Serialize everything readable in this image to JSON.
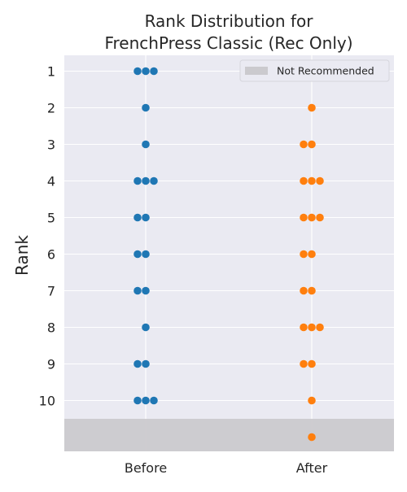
{
  "chart_data": {
    "type": "scatter",
    "subtype": "swarm",
    "title_lines": [
      "Rank Distribution for",
      "FrenchPress Classic (Rec Only)"
    ],
    "ylabel": "Rank",
    "xlabel": "",
    "categories": [
      "Before",
      "After"
    ],
    "y_ticks": [
      1,
      2,
      3,
      4,
      5,
      6,
      7,
      8,
      9,
      10
    ],
    "y_inverted": true,
    "not_recommended_value": 11,
    "legend": {
      "label": "Not Recommended",
      "position": "top-right",
      "color": "#cbcace"
    },
    "series": [
      {
        "category": "Before",
        "color": "#1f77b4",
        "counts": {
          "1": 3,
          "2": 1,
          "3": 1,
          "4": 3,
          "5": 2,
          "6": 2,
          "7": 2,
          "8": 1,
          "9": 2,
          "10": 3
        }
      },
      {
        "category": "After",
        "color": "#ff7f0e",
        "counts": {
          "2": 1,
          "3": 2,
          "4": 3,
          "5": 3,
          "6": 2,
          "7": 2,
          "8": 3,
          "9": 2,
          "10": 1,
          "11": 1
        }
      }
    ],
    "style": {
      "background": "#eaeaf2",
      "grid": true,
      "grid_color": "#ffffff"
    }
  }
}
